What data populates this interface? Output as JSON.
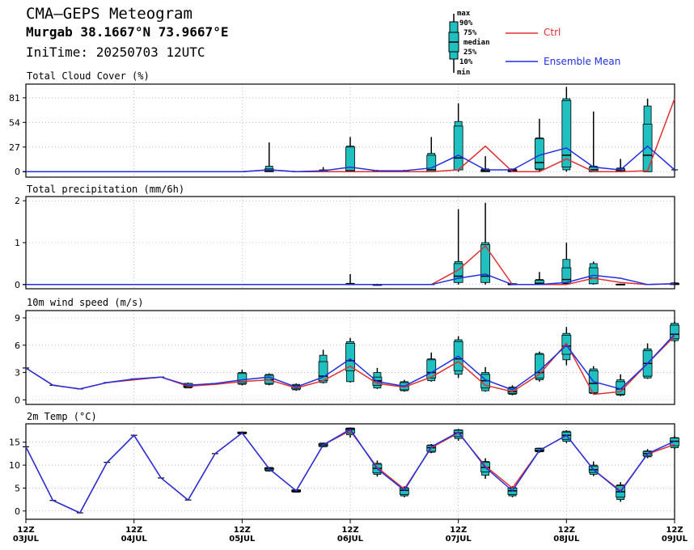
{
  "header": {
    "title": "CMA—GEPS Meteogram",
    "location": "Murgab 38.1667°N 73.9667°E",
    "init_time": "IniTime: 20250703 12UTC"
  },
  "legend": {
    "box_labels": [
      "max",
      "90%",
      "75%",
      "median",
      "25%",
      "10%",
      "min"
    ],
    "ctrl_label": "Ctrl",
    "mean_label": "Ensemble Mean",
    "ctrl_color": "#e03030",
    "mean_color": "#2030e0",
    "box_color": "#20c0c0"
  },
  "x_axis": {
    "tick_labels": [
      {
        "top": "12Z",
        "bottom": "03JUL"
      },
      {
        "top": "12Z",
        "bottom": "04JUL"
      },
      {
        "top": "12Z",
        "bottom": "05JUL"
      },
      {
        "top": "12Z",
        "bottom": "06JUL"
      },
      {
        "top": "12Z",
        "bottom": "07JUL"
      },
      {
        "top": "12Z",
        "bottom": "08JUL"
      },
      {
        "top": "12Z",
        "bottom": "09JUL"
      }
    ]
  },
  "chart_data": [
    {
      "type": "box-line",
      "title": "Total Cloud Cover (%)",
      "ylim": [
        -6,
        96
      ],
      "yticks": [
        0,
        27,
        54,
        81
      ],
      "steps": 25,
      "ctrl": [
        0,
        0,
        0,
        0,
        0,
        0,
        0,
        0,
        0,
        2,
        0,
        0,
        0,
        0,
        0,
        0,
        2,
        28,
        0,
        0,
        14,
        0,
        0,
        1,
        80
      ],
      "mean": [
        0,
        0,
        0,
        0,
        0,
        0,
        0,
        0,
        0,
        2,
        0,
        1,
        5,
        1,
        1,
        4,
        18,
        2,
        2,
        18,
        26,
        5,
        2,
        28,
        2
      ],
      "boxes": [
        {
          "i": 9,
          "min": 0,
          "p10": 0,
          "p25": 0,
          "median": 1,
          "p75": 3,
          "p90": 6,
          "max": 32
        },
        {
          "i": 11,
          "min": 0,
          "p10": 0,
          "p25": 0,
          "median": 0,
          "p75": 1,
          "p90": 2,
          "max": 5
        },
        {
          "i": 12,
          "min": 0,
          "p10": 0,
          "p25": 0,
          "median": 1,
          "p75": 27,
          "p90": 28,
          "max": 38
        },
        {
          "i": 13,
          "min": 0,
          "p10": 0,
          "p25": 0,
          "median": 0,
          "p75": 1,
          "p90": 1,
          "max": 2
        },
        {
          "i": 14,
          "min": 0,
          "p10": 0,
          "p25": 0,
          "median": 0,
          "p75": 1,
          "p90": 1,
          "max": 2
        },
        {
          "i": 15,
          "min": 0,
          "p10": 0,
          "p25": 0,
          "median": 2,
          "p75": 18,
          "p90": 20,
          "max": 38
        },
        {
          "i": 16,
          "min": 0,
          "p10": 2,
          "p25": 2,
          "median": 15,
          "p75": 50,
          "p90": 55,
          "max": 75
        },
        {
          "i": 17,
          "min": 0,
          "p10": 0,
          "p25": 0,
          "median": 1,
          "p75": 2,
          "p90": 3,
          "max": 17
        },
        {
          "i": 18,
          "min": 0,
          "p10": 0,
          "p25": 0,
          "median": 1,
          "p75": 2,
          "p90": 3,
          "max": 3
        },
        {
          "i": 19,
          "min": 0,
          "p10": 2,
          "p25": 3,
          "median": 10,
          "p75": 36,
          "p90": 37,
          "max": 58
        },
        {
          "i": 20,
          "min": 0,
          "p10": 2,
          "p25": 5,
          "median": 18,
          "p75": 78,
          "p90": 80,
          "max": 93
        },
        {
          "i": 21,
          "min": 0,
          "p10": 0,
          "p25": 0,
          "median": 2,
          "p75": 5,
          "p90": 6,
          "max": 66
        },
        {
          "i": 22,
          "min": 0,
          "p10": 0,
          "p25": 0,
          "median": 1,
          "p75": 3,
          "p90": 4,
          "max": 14
        },
        {
          "i": 23,
          "min": 0,
          "p10": 0,
          "p25": 0,
          "median": 18,
          "p75": 52,
          "p90": 72,
          "max": 80
        }
      ]
    },
    {
      "type": "box-line",
      "title": "Total precipitation (mm/6h)",
      "ylim": [
        -0.1,
        2.1
      ],
      "yticks": [
        0,
        1,
        2
      ],
      "steps": 25,
      "ctrl": [
        0,
        0,
        0,
        0,
        0,
        0,
        0,
        0,
        0,
        0,
        0,
        0,
        0,
        0,
        0,
        0,
        0.35,
        0.92,
        0,
        0,
        0,
        0.15,
        0.05,
        0,
        0.02
      ],
      "mean": [
        0,
        0,
        0,
        0,
        0,
        0,
        0,
        0,
        0,
        0,
        0,
        0,
        0,
        0,
        0,
        0,
        0.15,
        0.25,
        0,
        0,
        0.05,
        0.22,
        0.15,
        0,
        0.02
      ],
      "boxes": [
        {
          "i": 12,
          "min": 0,
          "p10": 0,
          "p25": 0,
          "median": 0,
          "p75": 0.02,
          "p90": 0.03,
          "max": 0.25
        },
        {
          "i": 13,
          "min": 0,
          "p10": 0,
          "p25": 0,
          "median": 0,
          "p75": 0,
          "p90": 0,
          "max": 0.02
        },
        {
          "i": 16,
          "min": 0,
          "p10": 0.05,
          "p25": 0.05,
          "median": 0.2,
          "p75": 0.5,
          "p90": 0.55,
          "max": 1.8
        },
        {
          "i": 17,
          "min": 0,
          "p10": 0.05,
          "p25": 0.05,
          "median": 0.2,
          "p75": 0.95,
          "p90": 1.0,
          "max": 1.95
        },
        {
          "i": 18,
          "min": 0,
          "p10": 0,
          "p25": 0,
          "median": 0,
          "p75": 0.02,
          "p90": 0.02,
          "max": 0.03
        },
        {
          "i": 19,
          "min": 0,
          "p10": 0,
          "p25": 0,
          "median": 0.03,
          "p75": 0.1,
          "p90": 0.12,
          "max": 0.3
        },
        {
          "i": 20,
          "min": 0,
          "p10": 0.02,
          "p25": 0.03,
          "median": 0.12,
          "p75": 0.4,
          "p90": 0.6,
          "max": 1.0
        },
        {
          "i": 21,
          "min": 0,
          "p10": 0.02,
          "p25": 0.02,
          "median": 0.15,
          "p75": 0.4,
          "p90": 0.5,
          "max": 0.55
        },
        {
          "i": 22,
          "min": 0,
          "p10": 0,
          "p25": 0,
          "median": 0,
          "p75": 0.01,
          "p90": 0.01,
          "max": 0.02
        },
        {
          "i": 24,
          "min": 0,
          "p10": 0,
          "p25": 0,
          "median": 0.01,
          "p75": 0.03,
          "p90": 0.04,
          "max": 0.06
        }
      ]
    },
    {
      "type": "box-line",
      "title": "10m wind speed (m/s)",
      "ylim": [
        -0.5,
        9.8
      ],
      "yticks": [
        0,
        3,
        6,
        9
      ],
      "steps": 25,
      "ctrl": [
        3.5,
        1.6,
        1.2,
        1.9,
        2.2,
        2.5,
        1.5,
        1.7,
        2.0,
        2.2,
        1.3,
        2.1,
        3.7,
        1.8,
        1.4,
        2.5,
        4.2,
        1.6,
        0.9,
        2.8,
        6.2,
        0.6,
        0.9,
        4.0,
        7.0
      ],
      "mean": [
        3.5,
        1.6,
        1.2,
        1.9,
        2.3,
        2.5,
        1.6,
        1.8,
        2.2,
        2.5,
        1.4,
        2.5,
        4.5,
        2.0,
        1.5,
        3.0,
        4.8,
        2.2,
        1.1,
        3.2,
        6.0,
        2.0,
        1.2,
        4.0,
        7.2
      ],
      "boxes": [
        {
          "i": 6,
          "min": 1.3,
          "p10": 1.3,
          "p25": 1.4,
          "median": 1.5,
          "p75": 1.8,
          "p90": 1.8,
          "max": 1.9
        },
        {
          "i": 8,
          "min": 1.6,
          "p10": 1.7,
          "p25": 1.8,
          "median": 2.0,
          "p75": 2.9,
          "p90": 3.0,
          "max": 3.3
        },
        {
          "i": 9,
          "min": 1.6,
          "p10": 1.7,
          "p25": 1.8,
          "median": 2.2,
          "p75": 2.7,
          "p90": 2.8,
          "max": 2.9
        },
        {
          "i": 10,
          "min": 1.0,
          "p10": 1.1,
          "p25": 1.2,
          "median": 1.4,
          "p75": 1.6,
          "p90": 1.7,
          "max": 1.8
        },
        {
          "i": 11,
          "min": 1.8,
          "p10": 1.9,
          "p25": 2.1,
          "median": 2.6,
          "p75": 4.2,
          "p90": 4.9,
          "max": 5.5
        },
        {
          "i": 12,
          "min": 1.9,
          "p10": 2.0,
          "p25": 3.2,
          "median": 4.3,
          "p75": 6.2,
          "p90": 6.4,
          "max": 6.8
        },
        {
          "i": 13,
          "min": 1.2,
          "p10": 1.3,
          "p25": 1.6,
          "median": 2.1,
          "p75": 2.5,
          "p90": 3.0,
          "max": 3.5
        },
        {
          "i": 14,
          "min": 0.9,
          "p10": 1.0,
          "p25": 1.1,
          "median": 1.5,
          "p75": 1.9,
          "p90": 2.0,
          "max": 2.2
        },
        {
          "i": 15,
          "min": 2.0,
          "p10": 2.1,
          "p25": 2.4,
          "median": 3.0,
          "p75": 4.4,
          "p90": 4.5,
          "max": 5.2
        },
        {
          "i": 16,
          "min": 2.4,
          "p10": 2.8,
          "p25": 3.2,
          "median": 4.5,
          "p75": 6.4,
          "p90": 6.6,
          "max": 7.0
        },
        {
          "i": 17,
          "min": 0.9,
          "p10": 1.0,
          "p25": 1.3,
          "median": 2.1,
          "p75": 2.8,
          "p90": 3.0,
          "max": 3.6
        },
        {
          "i": 18,
          "min": 0.5,
          "p10": 0.6,
          "p25": 0.7,
          "median": 0.9,
          "p75": 1.3,
          "p90": 1.4,
          "max": 1.6
        },
        {
          "i": 19,
          "min": 2.0,
          "p10": 2.2,
          "p25": 2.4,
          "median": 3.0,
          "p75": 5.0,
          "p90": 5.1,
          "max": 5.3
        },
        {
          "i": 20,
          "min": 3.8,
          "p10": 4.4,
          "p25": 5.0,
          "median": 5.9,
          "p75": 7.1,
          "p90": 7.3,
          "max": 8.0
        },
        {
          "i": 21,
          "min": 0.6,
          "p10": 0.7,
          "p25": 0.8,
          "median": 1.8,
          "p75": 3.2,
          "p90": 3.4,
          "max": 3.7
        },
        {
          "i": 22,
          "min": 0.4,
          "p10": 0.5,
          "p25": 0.6,
          "median": 1.2,
          "p75": 2.0,
          "p90": 2.2,
          "max": 2.8
        },
        {
          "i": 23,
          "min": 2.3,
          "p10": 2.4,
          "p25": 2.6,
          "median": 4.0,
          "p75": 5.4,
          "p90": 5.6,
          "max": 6.2
        },
        {
          "i": 24,
          "min": 6.3,
          "p10": 6.5,
          "p25": 6.7,
          "median": 7.2,
          "p75": 8.2,
          "p90": 8.4,
          "max": 8.6
        }
      ]
    },
    {
      "type": "box-line",
      "title": "2m Temp (°C)",
      "ylim": [
        -1.8,
        19
      ],
      "yticks": [
        0,
        5,
        10,
        15
      ],
      "steps": 25,
      "ctrl": [
        14,
        2.3,
        -0.4,
        10.6,
        16.5,
        7.2,
        2.4,
        12.5,
        17,
        9.2,
        4.4,
        14.4,
        17.5,
        9.5,
        4.8,
        13.8,
        17,
        9.8,
        5,
        13.2,
        16.5,
        9,
        4.4,
        12.4,
        14.5
      ],
      "mean": [
        14,
        2.3,
        -0.4,
        10.6,
        16.5,
        7.2,
        2.4,
        12.5,
        17,
        9.2,
        4.4,
        14.4,
        17.8,
        9.2,
        4.5,
        14,
        17.2,
        9.5,
        4.4,
        13.2,
        16.5,
        9,
        4.2,
        12.5,
        15.2
      ],
      "boxes": [
        {
          "i": 8,
          "min": 16.8,
          "p10": 16.8,
          "p25": 16.9,
          "median": 17,
          "p75": 17.2,
          "p90": 17.2,
          "max": 17.3
        },
        {
          "i": 9,
          "min": 8.6,
          "p10": 8.7,
          "p25": 8.9,
          "median": 9.2,
          "p75": 9.4,
          "p90": 9.5,
          "max": 9.6
        },
        {
          "i": 10,
          "min": 4.0,
          "p10": 4.1,
          "p25": 4.2,
          "median": 4.4,
          "p75": 4.6,
          "p90": 4.6,
          "max": 4.7
        },
        {
          "i": 11,
          "min": 13.9,
          "p10": 14.0,
          "p25": 14.1,
          "median": 14.4,
          "p75": 14.7,
          "p90": 14.8,
          "max": 14.9
        },
        {
          "i": 12,
          "min": 16.0,
          "p10": 16.6,
          "p25": 17.0,
          "median": 17.8,
          "p75": 18.0,
          "p90": 18.1,
          "max": 18.2
        },
        {
          "i": 13,
          "min": 7.5,
          "p10": 8.0,
          "p25": 8.3,
          "median": 9.3,
          "p75": 10.2,
          "p90": 10.4,
          "max": 11
        },
        {
          "i": 14,
          "min": 3.0,
          "p10": 3.3,
          "p25": 3.6,
          "median": 4.5,
          "p75": 5.0,
          "p90": 5.1,
          "max": 5.4
        },
        {
          "i": 15,
          "min": 12.6,
          "p10": 12.8,
          "p25": 13.0,
          "median": 13.8,
          "p75": 14.3,
          "p90": 14.4,
          "max": 14.6
        },
        {
          "i": 16,
          "min": 15.3,
          "p10": 15.8,
          "p25": 16.2,
          "median": 17.0,
          "p75": 17.6,
          "p90": 17.7,
          "max": 17.9
        },
        {
          "i": 17,
          "min": 7.0,
          "p10": 7.8,
          "p25": 8.5,
          "median": 9.5,
          "p75": 10.6,
          "p90": 10.8,
          "max": 11.5
        },
        {
          "i": 18,
          "min": 3.0,
          "p10": 3.3,
          "p25": 3.6,
          "median": 4.4,
          "p75": 5.0,
          "p90": 5.1,
          "max": 5.4
        },
        {
          "i": 19,
          "min": 12.7,
          "p10": 12.9,
          "p25": 13.0,
          "median": 13.2,
          "p75": 13.6,
          "p90": 13.7,
          "max": 13.8
        },
        {
          "i": 20,
          "min": 14.8,
          "p10": 15.2,
          "p25": 15.6,
          "median": 16.5,
          "p75": 17.2,
          "p90": 17.4,
          "max": 17.6
        },
        {
          "i": 21,
          "min": 7.6,
          "p10": 8.0,
          "p25": 8.4,
          "median": 9.0,
          "p75": 9.8,
          "p90": 10.0,
          "max": 10.8
        },
        {
          "i": 22,
          "min": 2.0,
          "p10": 2.5,
          "p25": 3.0,
          "median": 4.2,
          "p75": 5.5,
          "p90": 5.7,
          "max": 6.3
        },
        {
          "i": 23,
          "min": 11.5,
          "p10": 11.8,
          "p25": 12.0,
          "median": 12.5,
          "p75": 13.0,
          "p90": 13.1,
          "max": 13.5
        },
        {
          "i": 24,
          "min": 13.5,
          "p10": 13.8,
          "p25": 14.2,
          "median": 15.2,
          "p75": 15.9,
          "p90": 16.0,
          "max": 16.3
        }
      ]
    }
  ]
}
